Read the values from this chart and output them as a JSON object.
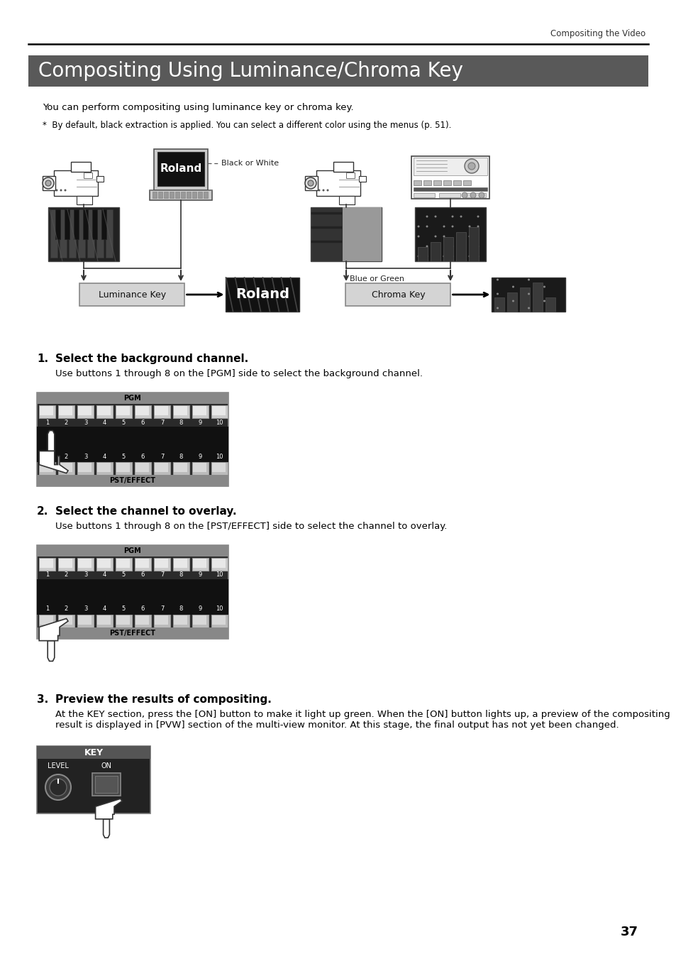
{
  "page_title": "Compositing the Video",
  "section_title": "Compositing Using Luminance/Chroma Key",
  "section_title_bg": "#595959",
  "section_title_color": "#ffffff",
  "body_text1": "You can perform compositing using luminance key or chroma key.",
  "body_text2": "*  By default, black extraction is applied. You can select a different color using the menus (p. 51).",
  "label_black_or_white": "Black or White",
  "label_blue_or_green": "Blue or Green",
  "label_luminance_key": "Luminance Key",
  "label_chroma_key": "Chroma Key",
  "step1_num": "1.",
  "step1_title": "Select the background channel.",
  "step1_text": "Use buttons 1 through 8 on the [PGM] side to select the background channel.",
  "step2_num": "2.",
  "step2_title": "Select the channel to overlay.",
  "step2_text": "Use buttons 1 through 8 on the [PST/EFFECT] side to select the channel to overlay.",
  "step3_num": "3.",
  "step3_title": "Preview the results of compositing.",
  "step3_text": "At the KEY section, press the [ON] button to make it light up green. When the [ON] button lights up, a preview of the compositing\nresult is displayed in [PVW] section of the multi-view monitor. At this stage, the final output has not yet been changed.",
  "pgm_label": "PGM",
  "pst_label": "PST/EFFECT",
  "key_label": "KEY",
  "level_label": "LEVEL",
  "on_label": "ON",
  "roland_text": "Roland",
  "page_number": "37",
  "bg_color": "#ffffff",
  "text_color": "#000000",
  "panel_bg": "#1c1c1c",
  "panel_border": "#888888",
  "btn_color": "#aaaaaa",
  "btn_dark": "#777777"
}
